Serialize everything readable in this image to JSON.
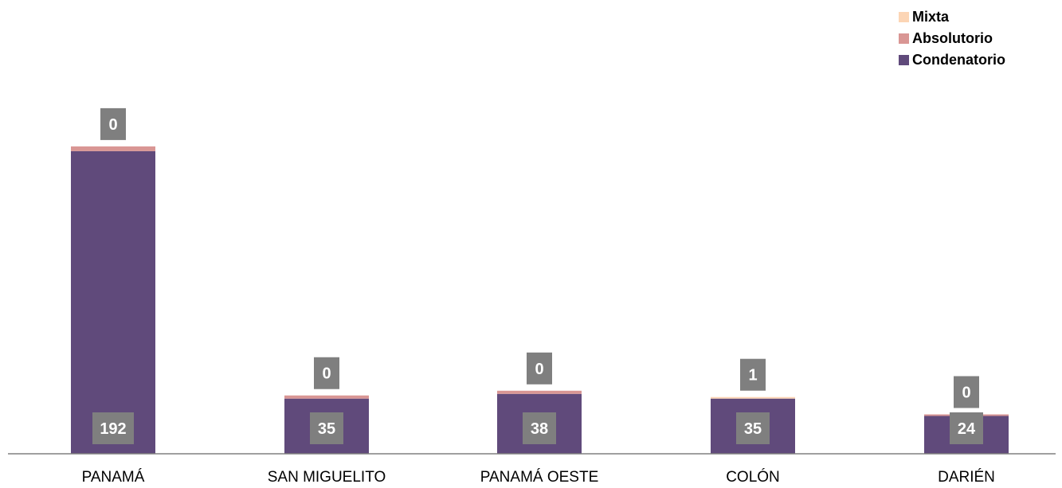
{
  "chart_data": {
    "type": "stacked-bar",
    "categories": [
      "PANAMÁ",
      "SAN MIGUELITO",
      "PANAMÁ OESTE",
      "COLÓN",
      "DARIÉN"
    ],
    "series": [
      {
        "name": "Condenatorio",
        "values": [
          192,
          35,
          38,
          35,
          24
        ],
        "color": "#604A7B"
      },
      {
        "name": "Absolutorio",
        "values": [
          3,
          2,
          2,
          0,
          1
        ],
        "color": "#D99694"
      },
      {
        "name": "Mixta",
        "values": [
          0,
          0,
          0,
          1,
          0
        ],
        "color": "#FCD5B5"
      }
    ],
    "data_labels": {
      "Condenatorio": [
        "192",
        "35",
        "38",
        "35",
        "24"
      ],
      "top": [
        "0",
        "0",
        "0",
        "1",
        "0"
      ]
    },
    "legend_order": [
      "Mixta",
      "Absolutorio",
      "Condenatorio"
    ],
    "legend_position": "top-right",
    "ylim": [
      0,
      200
    ],
    "grid": false,
    "title": "",
    "xlabel": "",
    "ylabel": ""
  }
}
